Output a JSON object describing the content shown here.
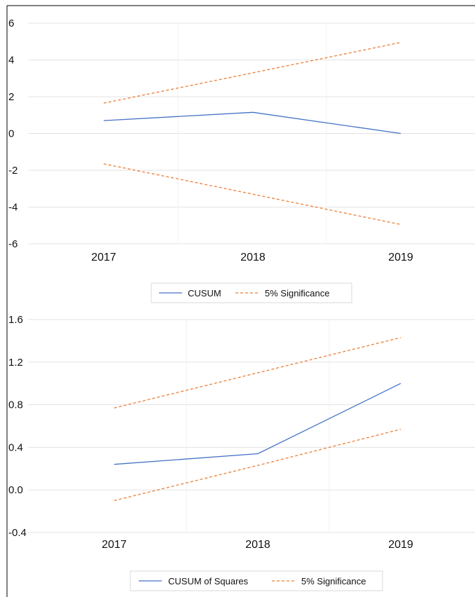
{
  "colors": {
    "cusum": "#4472C4",
    "significance": "#ED7D31",
    "grid": "#e3e3e3",
    "frame": "#000000"
  },
  "chart_data": [
    {
      "type": "line",
      "title": "",
      "xlabel": "",
      "ylabel": "",
      "categories": [
        "2017",
        "2018",
        "2019"
      ],
      "ylim": [
        -6,
        6
      ],
      "yticks": [
        6,
        4,
        2,
        0,
        -2,
        -4,
        -6
      ],
      "ytick_labels": [
        "6",
        "4",
        "2",
        "0",
        "-2",
        "-4",
        "-6"
      ],
      "grid": true,
      "legend_position": "bottom",
      "series": [
        {
          "name": "CUSUM",
          "style": "solid",
          "color": "#4472C4",
          "values": [
            0.7,
            1.15,
            0.0
          ]
        },
        {
          "name": "5% Significance",
          "style": "dashed",
          "color": "#ED7D31",
          "values": [
            1.65,
            3.3,
            4.95
          ]
        },
        {
          "name": "",
          "style": "dashed",
          "color": "#ED7D31",
          "values": [
            -1.65,
            -3.3,
            -4.95
          ]
        }
      ],
      "legend": [
        "CUSUM",
        "5% Significance"
      ]
    },
    {
      "type": "line",
      "title": "",
      "xlabel": "",
      "ylabel": "",
      "categories": [
        "2017",
        "2018",
        "2019"
      ],
      "ylim": [
        -0.4,
        1.6
      ],
      "yticks": [
        1.6,
        1.2,
        0.8,
        0.4,
        0.0,
        -0.4
      ],
      "ytick_labels": [
        "1.6",
        "1.2",
        "0.8",
        "0.4",
        "0.0",
        "-0.4"
      ],
      "grid": true,
      "legend_position": "bottom",
      "series": [
        {
          "name": "CUSUM of Squares",
          "style": "solid",
          "color": "#4472C4",
          "values": [
            0.24,
            0.34,
            1.0
          ]
        },
        {
          "name": "5% Significance",
          "style": "dashed",
          "color": "#ED7D31",
          "values": [
            0.77,
            1.1,
            1.43
          ]
        },
        {
          "name": "",
          "style": "dashed",
          "color": "#ED7D31",
          "values": [
            -0.1,
            0.23,
            0.57
          ]
        }
      ],
      "legend": [
        "CUSUM of Squares",
        "5% Significance"
      ]
    }
  ]
}
